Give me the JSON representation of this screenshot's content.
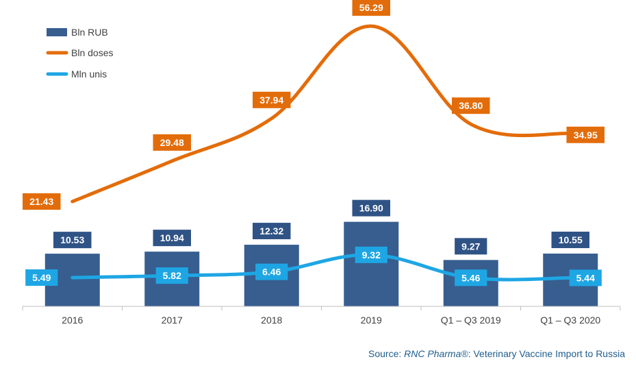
{
  "chart_data": {
    "type": "bar",
    "categories": [
      "2016",
      "2017",
      "2018",
      "2019",
      "Q1 – Q3 2019",
      "Q1 – Q3 2020"
    ],
    "series": [
      {
        "name": "Bln RUB",
        "kind": "bar",
        "color": "#375E8F",
        "labelColor": "#2F5385",
        "values": [
          10.53,
          10.94,
          12.32,
          16.9,
          9.27,
          10.55
        ],
        "labels": [
          "10.53",
          "10.94",
          "12.32",
          "16.90",
          "9.27",
          "10.55"
        ]
      },
      {
        "name": "Bln doses",
        "kind": "line",
        "color": "#E36C0A",
        "labelColor": "#E36C0A",
        "values": [
          21.43,
          29.48,
          37.94,
          56.29,
          36.8,
          34.95
        ],
        "labels": [
          "21.43",
          "29.48",
          "37.94",
          "56.29",
          "36.80",
          "34.95"
        ]
      },
      {
        "name": "Mln unis",
        "kind": "line",
        "color": "#1EA6E4",
        "labelColor": "#1EA6E4",
        "values": [
          5.49,
          5.82,
          6.46,
          9.32,
          5.46,
          5.44
        ],
        "labels": [
          "5.49",
          "5.82",
          "6.46",
          "9.32",
          "5.46",
          "5.44"
        ]
      }
    ],
    "legend": "top-left",
    "grid": false,
    "title": "",
    "xlabel": "",
    "ylabel": ""
  },
  "source": {
    "prefix": "Source: ",
    "brand": "RNC Pharma®",
    "suffix": ": Veterinary Vaccine Import to Russia"
  }
}
